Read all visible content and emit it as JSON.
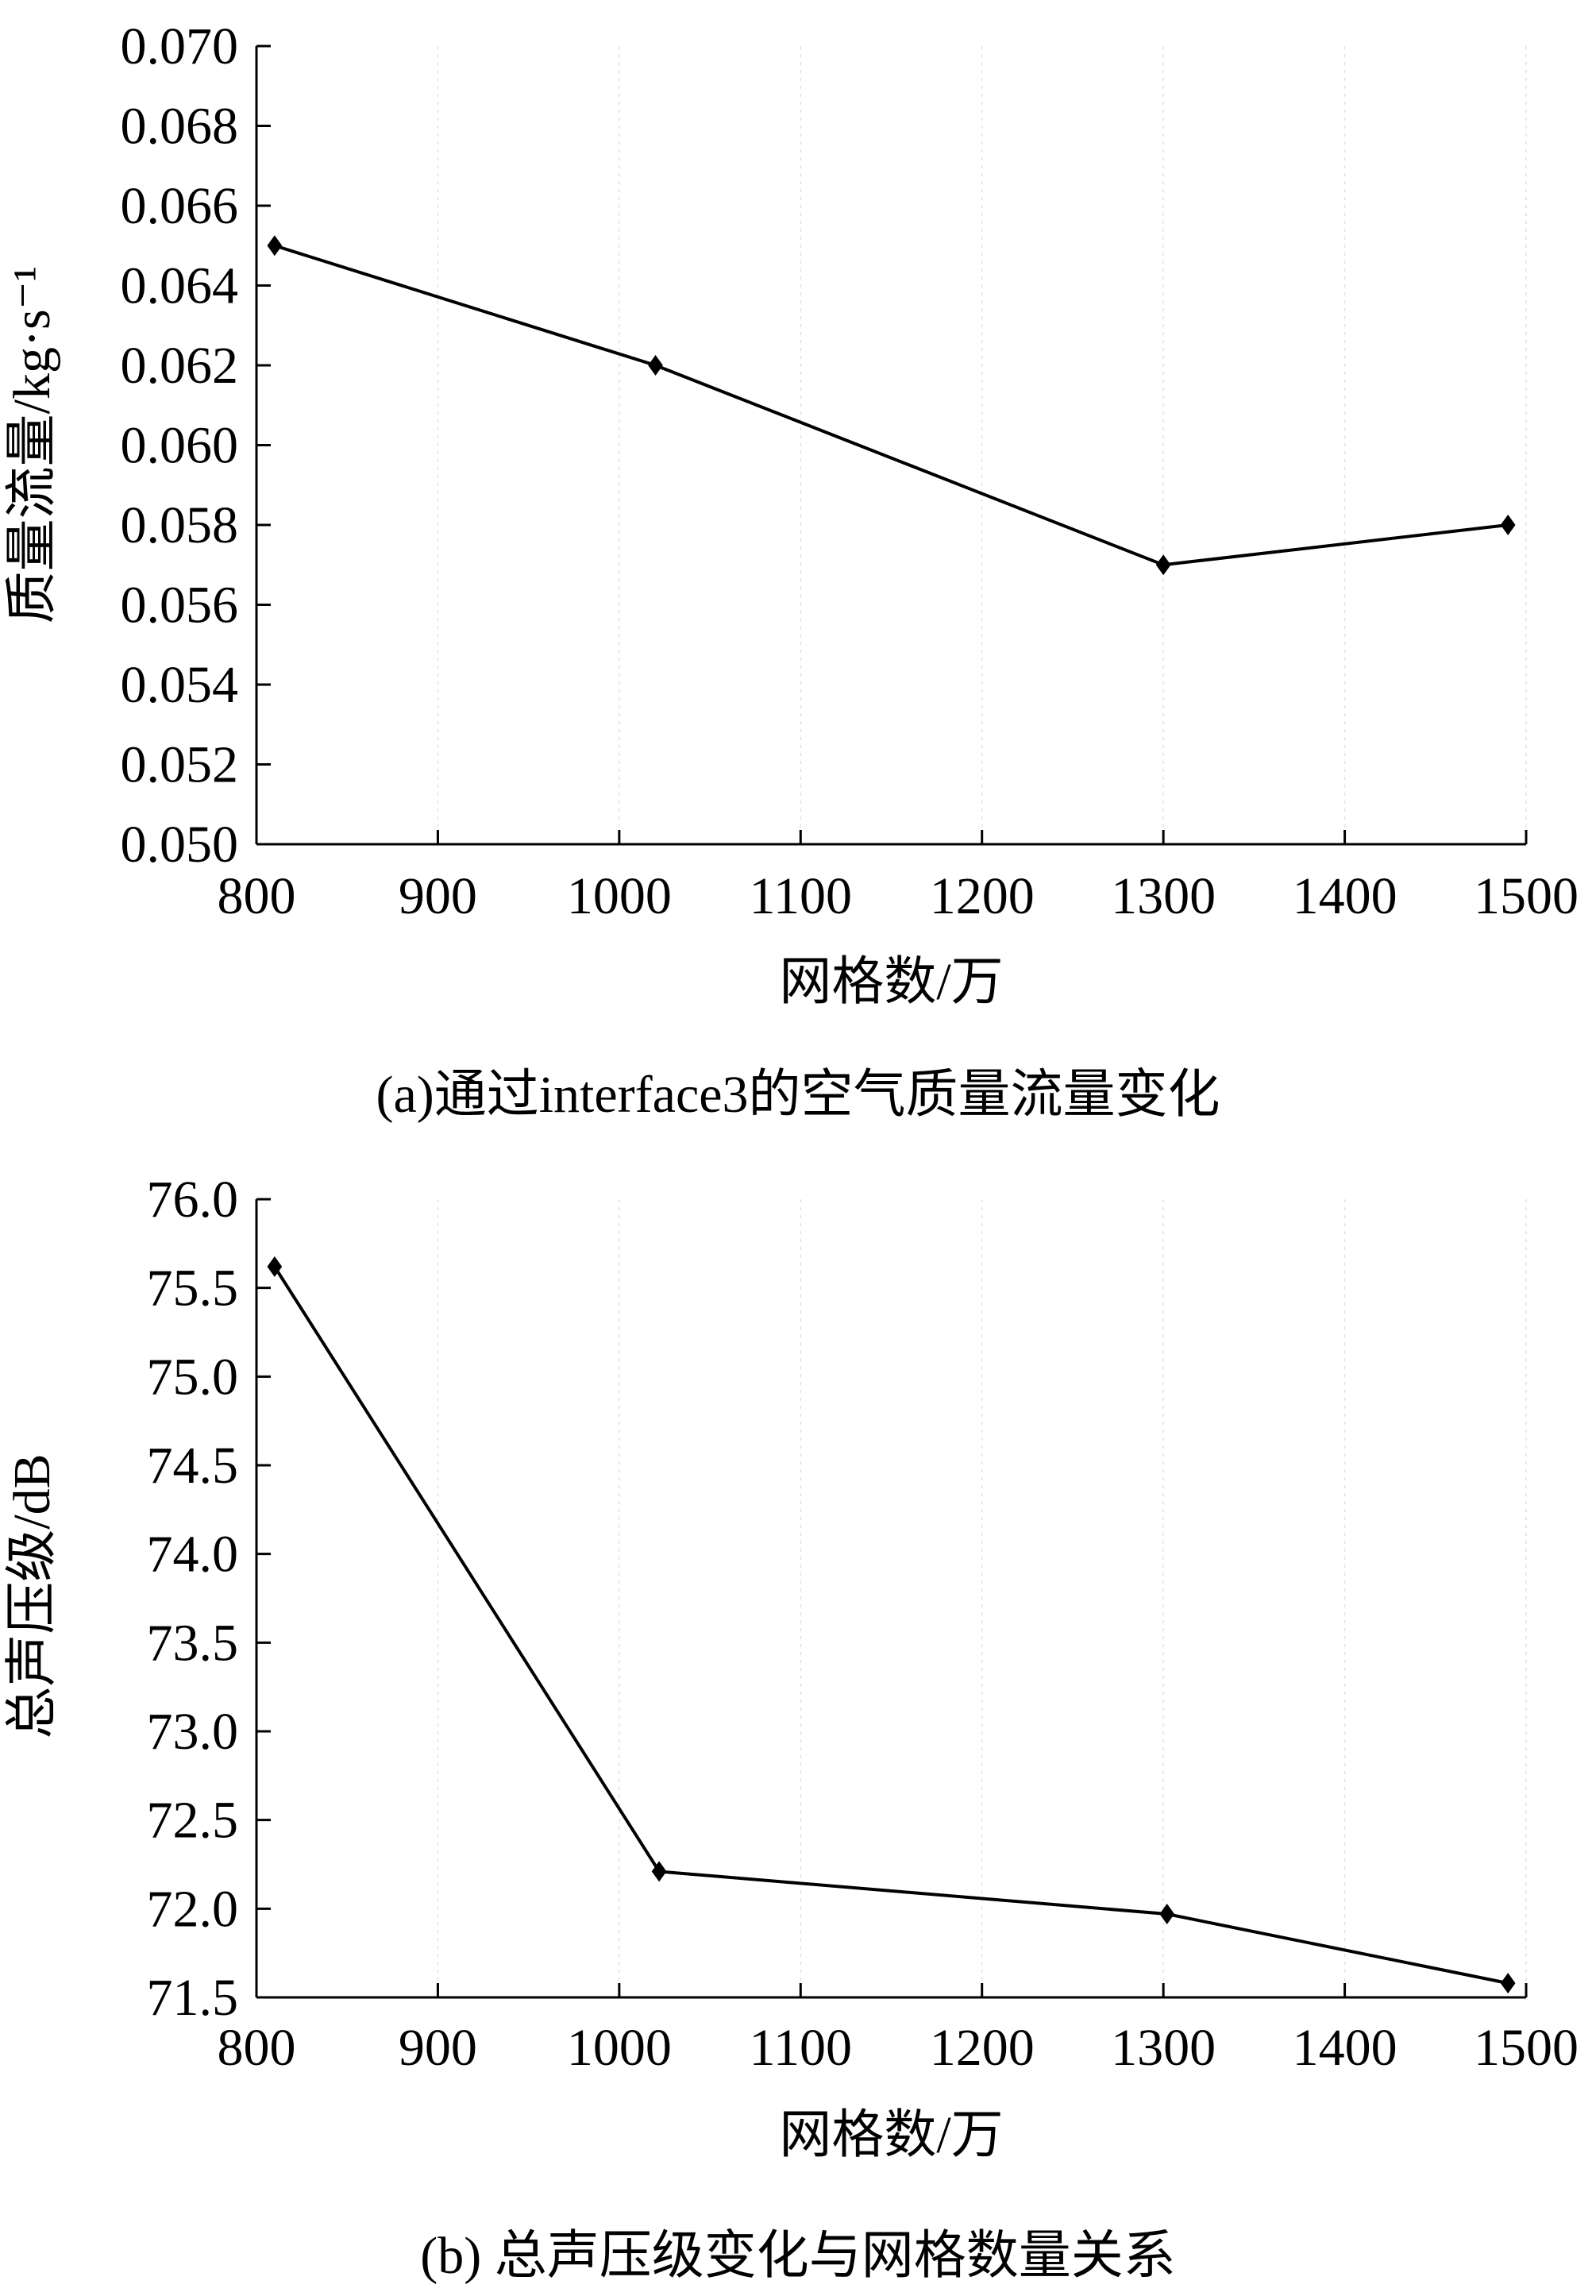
{
  "chart_data": [
    {
      "type": "line",
      "caption": "(a)通过interface3的空气质量流量变化",
      "xlabel": "网格数/万",
      "ylabel": "质量流量/kg·s⁻¹",
      "xlim": [
        800,
        1500
      ],
      "ylim": [
        0.05,
        0.07
      ],
      "x_ticks": [
        "800",
        "900",
        "1000",
        "1100",
        "1200",
        "1300",
        "1400",
        "1500"
      ],
      "y_ticks": [
        "0.050",
        "0.052",
        "0.054",
        "0.056",
        "0.058",
        "0.060",
        "0.062",
        "0.064",
        "0.066",
        "0.068",
        "0.070"
      ],
      "grid": true,
      "series": [
        {
          "x": [
            810,
            1020,
            1300,
            1490
          ],
          "y": [
            0.065,
            0.062,
            0.057,
            0.058
          ]
        }
      ]
    },
    {
      "type": "line",
      "caption": "(b) 总声压级变化与网格数量关系",
      "xlabel": "网格数/万",
      "ylabel": "总声压级/dB",
      "xlim": [
        800,
        1500
      ],
      "ylim": [
        71.5,
        76.0
      ],
      "x_ticks": [
        "800",
        "900",
        "1000",
        "1100",
        "1200",
        "1300",
        "1400",
        "1500"
      ],
      "y_ticks": [
        "71.5",
        "72.0",
        "72.5",
        "73.0",
        "73.5",
        "74.0",
        "74.5",
        "75.0",
        "75.5",
        "76.0"
      ],
      "grid": true,
      "series": [
        {
          "x": [
            810,
            1022,
            1302,
            1490
          ],
          "y": [
            75.62,
            72.21,
            71.97,
            71.58
          ]
        }
      ]
    }
  ]
}
